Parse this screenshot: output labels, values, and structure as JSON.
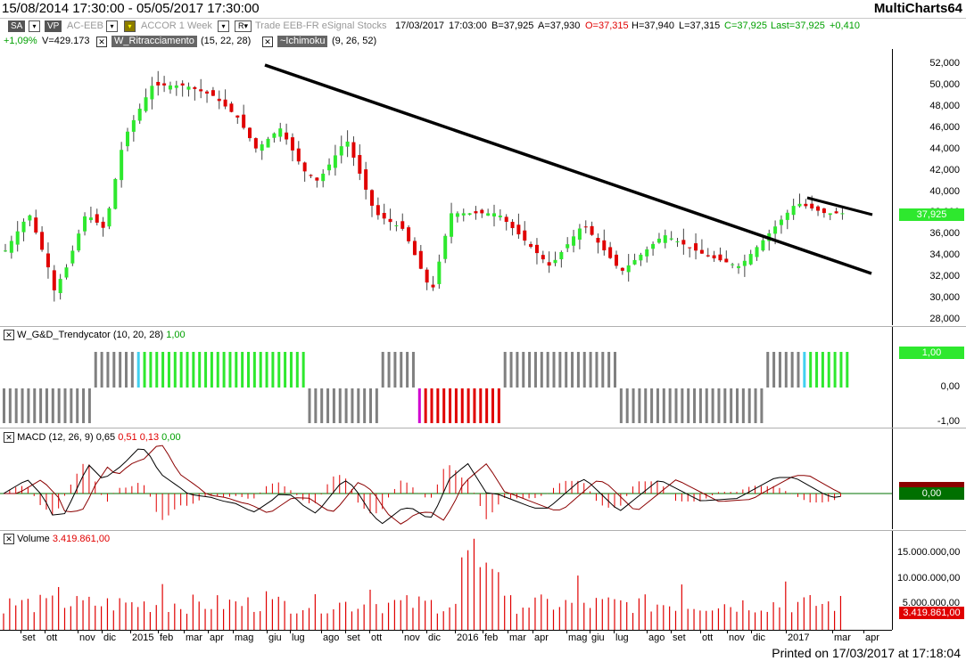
{
  "window": {
    "title_range": "15/08/2014 17:30:00 - 05/05/2017 17:30:00",
    "app_name": "MultiCharts64"
  },
  "toolbar": {
    "sa": "SA",
    "vp": "VP",
    "symbol": "AC-EEB",
    "name_interval": "ACCOR  1 Week",
    "r_btn": "R",
    "source": "Trade  EEB-FR  eSignal  Stocks",
    "date": "17/03/2017",
    "time": "17:03:00",
    "bid": "B=37,925",
    "ask": "A=37,930",
    "open": "O=37,315",
    "high": "H=37,940",
    "low": "L=37,315",
    "close": "C=37,925",
    "last": "Last=37,925",
    "change": "+0,410"
  },
  "status_row": {
    "pct_change": "+1,09%",
    "volume": "V=429.173",
    "study1_name": "W_Ritracciamento",
    "study1_params": "(15, 22, 28)",
    "study2_name": "~Ichimoku",
    "study2_params": "(9, 26, 52)"
  },
  "price_pane": {
    "axis_labels": [
      "52,000",
      "50,000",
      "48,000",
      "46,000",
      "44,000",
      "42,000",
      "40,000",
      "38,000",
      "36,000",
      "34,000",
      "32,000",
      "30,000",
      "28,000"
    ],
    "last_price_badge": "37,925"
  },
  "trendycator_pane": {
    "name": "W_G&D_Trendycator",
    "params": "(10, 20, 28)",
    "value": "1,00",
    "axis_labels": [
      "1,00",
      "0,00",
      "-1,00"
    ],
    "badge": "1,00"
  },
  "macd_pane": {
    "name": "MACD",
    "params": "(12, 26, 9)",
    "v1": "0,65",
    "v2": "0,51",
    "v3": "0,13",
    "v4": "0,00",
    "badge": "0,00"
  },
  "volume_pane": {
    "name": "Volume",
    "value": "3.419.861,00",
    "axis_labels": [
      "15.000.000,00",
      "10.000.000,00",
      "5.000.000,00"
    ],
    "badge": "3.419.861,00"
  },
  "time_axis": [
    "set",
    "ott",
    "nov",
    "dic",
    "2015",
    "feb",
    "mar",
    "apr",
    "mag",
    "giu",
    "lug",
    "ago",
    "set",
    "ott",
    "nov",
    "dic",
    "2016",
    "feb",
    "mar",
    "apr",
    "mag",
    "giu",
    "lug",
    "ago",
    "set",
    "ott",
    "nov",
    "dic",
    "2017",
    "mar",
    "apr"
  ],
  "footer": {
    "printed": "Printed on 17/03/2017 at 17:18:04"
  },
  "colors": {
    "up": "#2ee82e",
    "down": "#e00000",
    "neutral": "#808080",
    "signal_cyan": "#40d0f0",
    "signal_magenta": "#d000d0"
  }
}
